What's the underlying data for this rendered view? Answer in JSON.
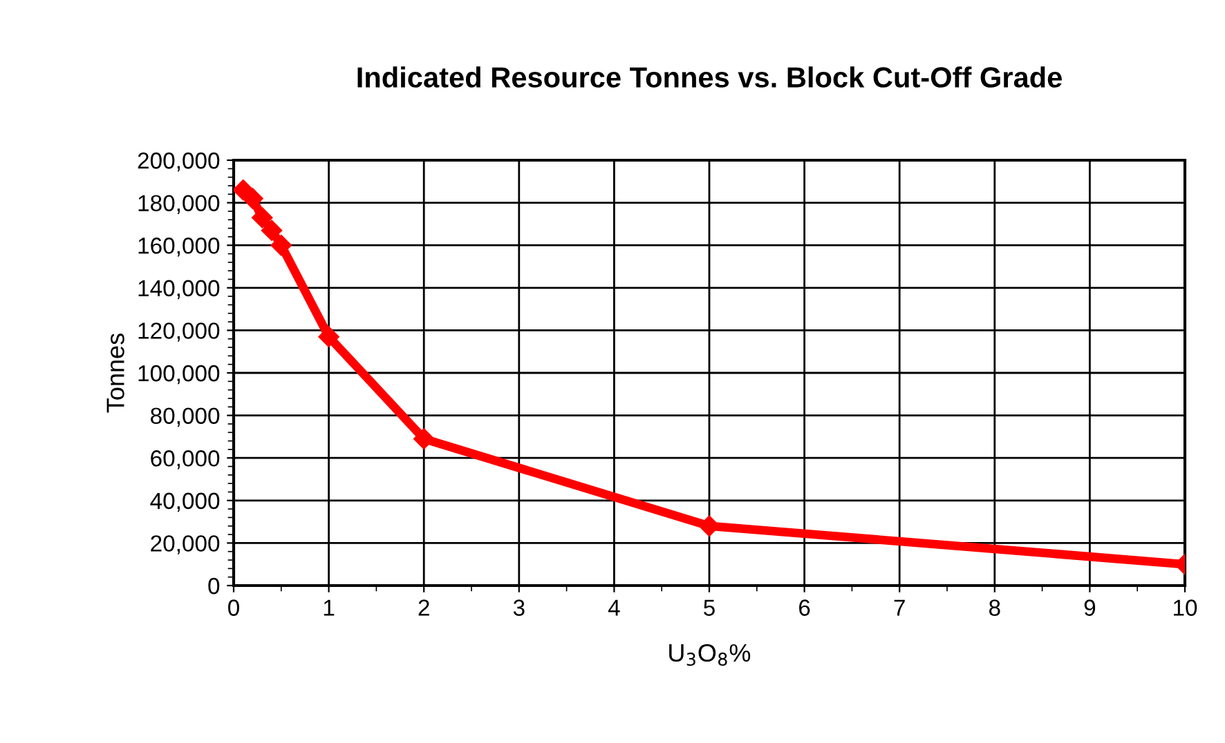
{
  "chart_data": {
    "type": "line",
    "title": "Indicated Resource Tonnes vs. Block Cut-Off Grade",
    "xlabel": "U$_{3}$O$_{8}$%",
    "ylabel": "Tonnes",
    "x": [
      0.1,
      0.2,
      0.3,
      0.4,
      0.5,
      1,
      2,
      5,
      10
    ],
    "series": [
      {
        "color": "#ff0000",
        "values": [
          186000,
          182000,
          173000,
          167000,
          160000,
          117000,
          69000,
          28000,
          10000
        ]
      }
    ],
    "xlim": [
      0,
      10
    ],
    "xticks": [
      0,
      1,
      2,
      3,
      4,
      5,
      6,
      7,
      8,
      9,
      10
    ],
    "ylim": [
      0,
      200000
    ],
    "yticks": [
      {
        "value": 0,
        "label": "0"
      },
      {
        "value": 20000,
        "label": "20,000"
      },
      {
        "value": 40000,
        "label": "40,000"
      },
      {
        "value": 60000,
        "label": "60,000"
      },
      {
        "value": 80000,
        "label": "80,000"
      },
      {
        "value": 100000,
        "label": "100,000"
      },
      {
        "value": 120000,
        "label": "120,000"
      },
      {
        "value": 140000,
        "label": "140,000"
      },
      {
        "value": 160000,
        "label": "160,000"
      },
      {
        "value": 180000,
        "label": "180,000"
      },
      {
        "value": 200000,
        "label": "200,000"
      }
    ],
    "grid": true,
    "marker": "diamond",
    "line_style": "solid"
  }
}
